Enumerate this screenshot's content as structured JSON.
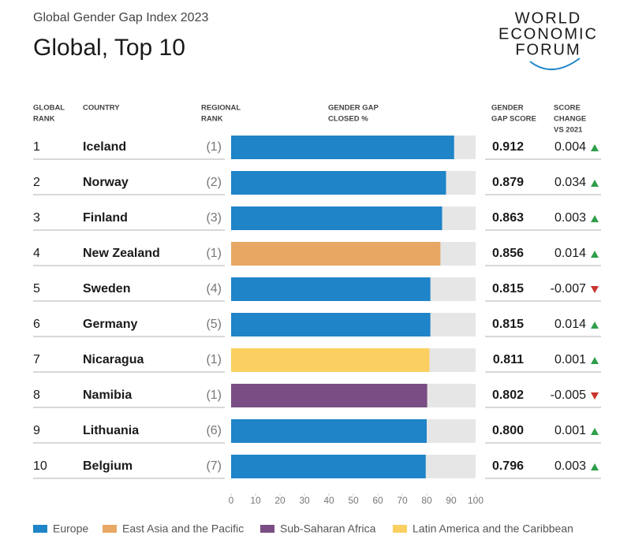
{
  "header": {
    "subtitle": "Global Gender Gap Index 2023",
    "title": "Global, Top 10",
    "logo": [
      "WORLD",
      "ECONOMIC",
      "FORUM"
    ]
  },
  "chart_data": {
    "type": "bar",
    "orientation": "horizontal",
    "column_headers": {
      "rank": [
        "GLOBAL",
        "RANK"
      ],
      "country": [
        "COUNTRY"
      ],
      "regional_rank": [
        "REGIONAL",
        "RANK"
      ],
      "bar": [
        "GENDER GAP",
        "CLOSED %"
      ],
      "score": [
        "GENDER",
        "GAP SCORE"
      ],
      "change": [
        "SCORE",
        "CHANGE",
        "VS 2021"
      ]
    },
    "ranks": [
      1,
      2,
      3,
      4,
      5,
      6,
      7,
      8,
      9,
      10
    ],
    "categories": [
      "Iceland",
      "Norway",
      "Finland",
      "New Zealand",
      "Sweden",
      "Germany",
      "Nicaragua",
      "Namibia",
      "Lithuania",
      "Belgium"
    ],
    "regional_ranks": [
      "(1)",
      "(2)",
      "(3)",
      "(1)",
      "(4)",
      "(5)",
      "(1)",
      "(1)",
      "(6)",
      "(7)"
    ],
    "values": [
      91.2,
      87.9,
      86.3,
      85.6,
      81.5,
      81.5,
      81.1,
      80.2,
      80.0,
      79.6
    ],
    "value_labels": [
      "0.912",
      "0.879",
      "0.863",
      "0.856",
      "0.815",
      "0.815",
      "0.811",
      "0.802",
      "0.800",
      "0.796"
    ],
    "changes": [
      0.004,
      0.034,
      0.003,
      0.014,
      -0.007,
      0.014,
      0.001,
      -0.005,
      0.001,
      0.003
    ],
    "colors": [
      "#1f84c8",
      "#1f84c8",
      "#1f84c8",
      "#e6a862",
      "#1f84c8",
      "#1f84c8",
      "#fbd061",
      "#7a4e84",
      "#1f84c8",
      "#1f84c8"
    ],
    "xlim": [
      0,
      100
    ],
    "xticks": [
      0,
      10,
      20,
      30,
      40,
      50,
      60,
      70,
      80,
      90,
      100
    ],
    "legend": [
      {
        "name": "Europe",
        "color": "#1f84c8"
      },
      {
        "name": "East Asia and the Pacific",
        "color": "#e6a862"
      },
      {
        "name": "Sub-Saharan Africa",
        "color": "#7a4e84"
      },
      {
        "name": "Latin America and the Caribbean",
        "color": "#fbd061"
      }
    ],
    "up_color": "#2e9e4a",
    "down_color": "#c8342c"
  }
}
